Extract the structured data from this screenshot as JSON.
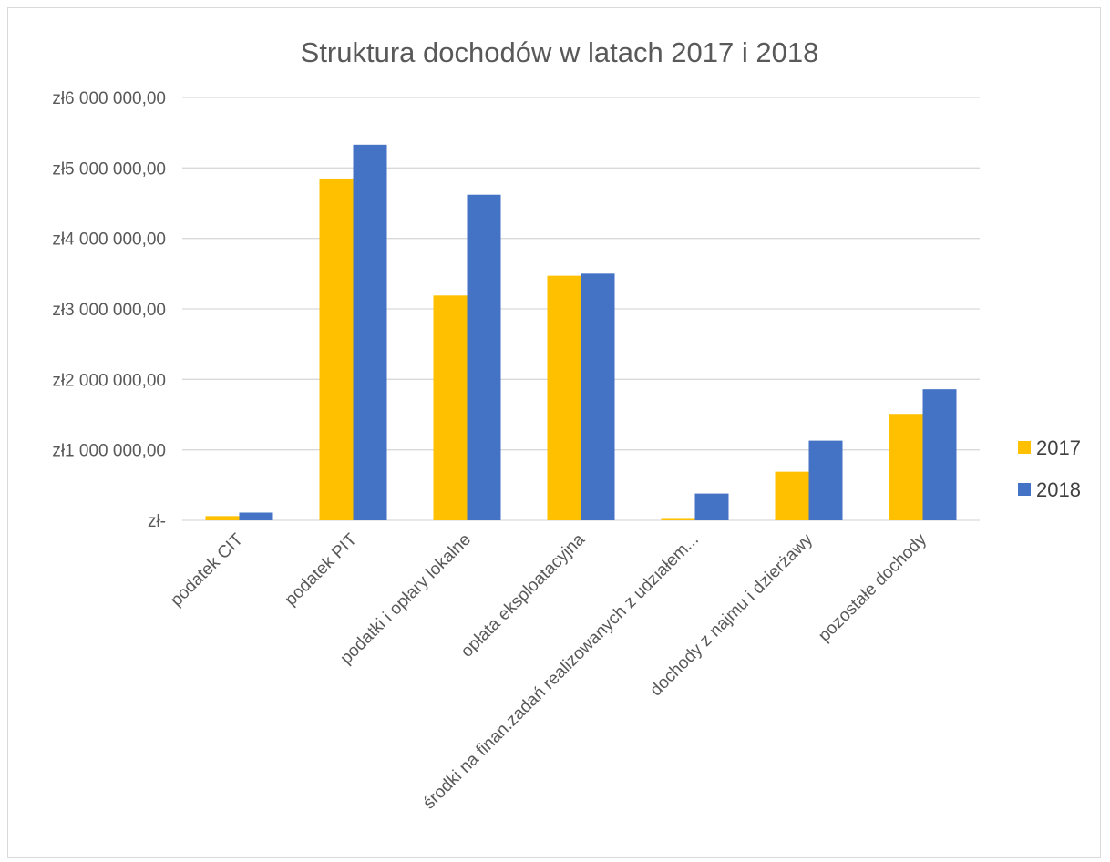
{
  "chart_data": {
    "type": "bar",
    "title": "Struktura dochodów w latach 2017 i 2018",
    "xlabel": "",
    "ylabel": "",
    "ylim": [
      0,
      6000000
    ],
    "yticks": [
      {
        "value": 0,
        "label": "zł-"
      },
      {
        "value": 1000000,
        "label": "zł1 000 000,00"
      },
      {
        "value": 2000000,
        "label": "zł2 000 000,00"
      },
      {
        "value": 3000000,
        "label": "zł3 000 000,00"
      },
      {
        "value": 4000000,
        "label": "zł4 000 000,00"
      },
      {
        "value": 5000000,
        "label": "zł5 000 000,00"
      },
      {
        "value": 6000000,
        "label": "zł6 000 000,00"
      }
    ],
    "grid": true,
    "legend_position": "right",
    "categories": [
      "podatek CIT",
      "podatek PIT",
      "podatki i opłary lokalne",
      "opłata eksploatacyjna",
      "środki na finan.zadań realizowanych z udziałem...",
      "dochody z najmu i dzierżawy",
      "pozostałe dochody"
    ],
    "series": [
      {
        "name": "2017",
        "color": "#FFC000",
        "values": [
          60000,
          4850000,
          3190000,
          3470000,
          20000,
          690000,
          1510000
        ]
      },
      {
        "name": "2018",
        "color": "#4472C4",
        "values": [
          110000,
          5330000,
          4620000,
          3500000,
          380000,
          1130000,
          1860000
        ]
      }
    ]
  }
}
